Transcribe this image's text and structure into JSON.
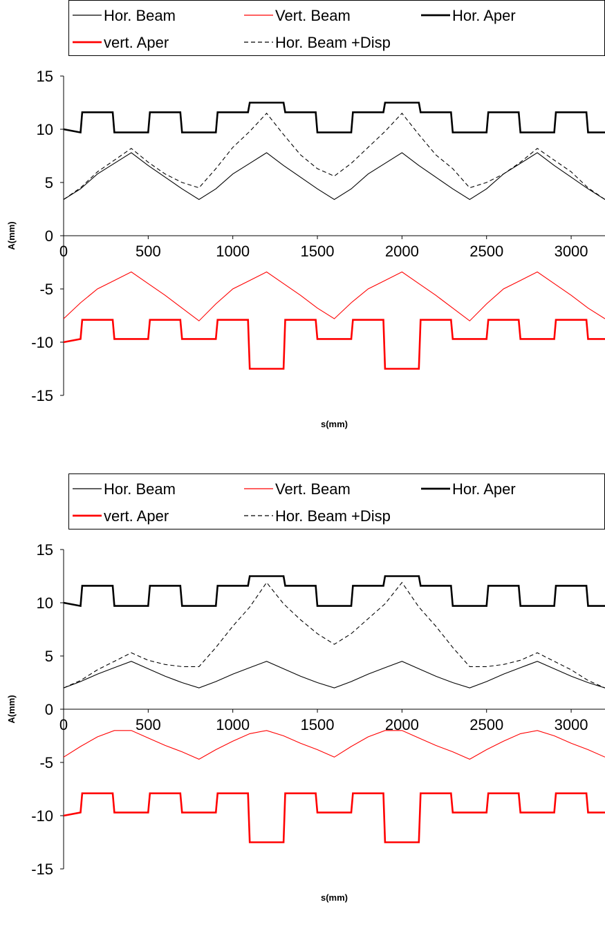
{
  "chart_data": [
    {
      "type": "line",
      "xlabel": "s(mm)",
      "ylabel": "A(mm)",
      "xlim": [
        0,
        3200
      ],
      "ylim": [
        -15,
        15
      ],
      "xticks": [
        "0",
        "500",
        "1000",
        "1500",
        "2000",
        "2500",
        "3000"
      ],
      "yticks": [
        "15",
        "10",
        "5",
        "0",
        "-5",
        "-10",
        "-15"
      ],
      "grid": "none",
      "legend_position": "top",
      "series": [
        {
          "name": "Hor. Beam",
          "color": "#000000",
          "width": 1,
          "dash": "none",
          "x": [
            0,
            100,
            200,
            300,
            400,
            500,
            600,
            700,
            800,
            900,
            1000,
            1100,
            1200,
            1300,
            1400,
            1500,
            1600,
            1700,
            1800,
            1900,
            2000,
            2100,
            2200,
            2300,
            2400,
            2500,
            2600,
            2700,
            2800,
            2900,
            3000,
            3100,
            3200
          ],
          "y": [
            3.4,
            4.4,
            5.8,
            6.8,
            7.8,
            6.6,
            5.5,
            4.4,
            3.4,
            4.4,
            5.8,
            6.8,
            7.8,
            6.6,
            5.5,
            4.4,
            3.4,
            4.4,
            5.8,
            6.8,
            7.8,
            6.6,
            5.5,
            4.4,
            3.4,
            4.4,
            5.8,
            6.8,
            7.8,
            6.6,
            5.5,
            4.4,
            3.4
          ]
        },
        {
          "name": "Vert. Beam",
          "color": "#ff0000",
          "width": 1,
          "dash": "none",
          "x": [
            0,
            100,
            200,
            300,
            400,
            500,
            600,
            700,
            800,
            900,
            1000,
            1100,
            1200,
            1300,
            1400,
            1500,
            1600,
            1700,
            1800,
            1900,
            2000,
            2100,
            2200,
            2300,
            2400,
            2500,
            2600,
            2700,
            2800,
            2900,
            3000,
            3100,
            3200
          ],
          "y": [
            -7.8,
            -6.3,
            -5.0,
            -4.2,
            -3.4,
            -4.5,
            -5.6,
            -6.8,
            -8.0,
            -6.4,
            -5.0,
            -4.2,
            -3.4,
            -4.5,
            -5.6,
            -6.8,
            -7.8,
            -6.3,
            -5.0,
            -4.2,
            -3.4,
            -4.5,
            -5.6,
            -6.8,
            -8.0,
            -6.4,
            -5.0,
            -4.2,
            -3.4,
            -4.5,
            -5.6,
            -6.8,
            -7.8
          ]
        },
        {
          "name": "Hor. Aper",
          "color": "#000000",
          "width": 2.5,
          "dash": "none",
          "x": [
            0,
            100,
            110,
            290,
            300,
            500,
            510,
            690,
            700,
            900,
            910,
            1090,
            1100,
            1300,
            1310,
            1490,
            1500,
            1700,
            1710,
            1890,
            1900,
            2100,
            2110,
            2290,
            2300,
            2500,
            2510,
            2690,
            2700,
            2900,
            2910,
            3090,
            3100,
            3200
          ],
          "y": [
            10.0,
            9.7,
            11.6,
            11.6,
            9.7,
            9.7,
            11.6,
            11.6,
            9.7,
            9.7,
            11.6,
            11.6,
            12.5,
            12.5,
            11.6,
            11.6,
            9.7,
            9.7,
            11.6,
            11.6,
            12.5,
            12.5,
            11.6,
            11.6,
            9.7,
            9.7,
            11.6,
            11.6,
            9.7,
            9.7,
            11.6,
            11.6,
            9.7,
            9.7
          ]
        },
        {
          "name": "vert. Aper",
          "color": "#ff0000",
          "width": 2.5,
          "dash": "none",
          "x": [
            0,
            100,
            110,
            290,
            300,
            500,
            510,
            690,
            700,
            900,
            910,
            1090,
            1100,
            1300,
            1310,
            1490,
            1500,
            1700,
            1710,
            1890,
            1900,
            2100,
            2110,
            2290,
            2300,
            2500,
            2510,
            2690,
            2700,
            2900,
            2910,
            3090,
            3100,
            3200
          ],
          "y": [
            -10.0,
            -9.7,
            -7.9,
            -7.9,
            -9.7,
            -9.7,
            -7.9,
            -7.9,
            -9.7,
            -9.7,
            -7.9,
            -7.9,
            -12.5,
            -12.5,
            -7.9,
            -7.9,
            -9.7,
            -9.7,
            -7.9,
            -7.9,
            -12.5,
            -12.5,
            -7.9,
            -7.9,
            -9.7,
            -9.7,
            -7.9,
            -7.9,
            -9.7,
            -9.7,
            -7.9,
            -7.9,
            -9.7,
            -9.7
          ]
        },
        {
          "name": "Hor. Beam +Disp",
          "color": "#000000",
          "width": 1,
          "dash": "6,4",
          "x": [
            0,
            100,
            200,
            300,
            400,
            500,
            600,
            700,
            800,
            900,
            1000,
            1100,
            1200,
            1300,
            1400,
            1500,
            1600,
            1700,
            1800,
            1900,
            2000,
            2100,
            2200,
            2300,
            2400,
            2500,
            2600,
            2700,
            2800,
            2900,
            3000,
            3100,
            3200
          ],
          "y": [
            3.4,
            4.5,
            6.0,
            7.1,
            8.2,
            6.9,
            5.8,
            5.0,
            4.5,
            6.3,
            8.3,
            9.8,
            11.5,
            9.5,
            7.6,
            6.3,
            5.6,
            6.8,
            8.3,
            9.8,
            11.5,
            9.5,
            7.6,
            6.3,
            4.5,
            5.0,
            5.8,
            6.9,
            8.2,
            7.1,
            6.0,
            4.5,
            3.4
          ]
        }
      ]
    },
    {
      "type": "line",
      "xlabel": "s(mm)",
      "ylabel": "A(mm)",
      "xlim": [
        0,
        3200
      ],
      "ylim": [
        -15,
        15
      ],
      "xticks": [
        "0",
        "500",
        "1000",
        "1500",
        "2000",
        "2500",
        "3000"
      ],
      "yticks": [
        "15",
        "10",
        "5",
        "0",
        "-5",
        "-10",
        "-15"
      ],
      "grid": "none",
      "legend_position": "top",
      "series": [
        {
          "name": "Hor. Beam",
          "color": "#000000",
          "width": 1,
          "dash": "none",
          "x": [
            0,
            100,
            200,
            300,
            400,
            500,
            600,
            700,
            800,
            900,
            1000,
            1100,
            1200,
            1300,
            1400,
            1500,
            1600,
            1700,
            1800,
            1900,
            2000,
            2100,
            2200,
            2300,
            2400,
            2500,
            2600,
            2700,
            2800,
            2900,
            3000,
            3100,
            3200
          ],
          "y": [
            2.0,
            2.6,
            3.3,
            3.9,
            4.5,
            3.8,
            3.1,
            2.5,
            2.0,
            2.6,
            3.3,
            3.9,
            4.5,
            3.8,
            3.1,
            2.5,
            2.0,
            2.6,
            3.3,
            3.9,
            4.5,
            3.8,
            3.1,
            2.5,
            2.0,
            2.6,
            3.3,
            3.9,
            4.5,
            3.8,
            3.1,
            2.5,
            2.0
          ]
        },
        {
          "name": "Vert. Beam",
          "color": "#ff0000",
          "width": 1,
          "dash": "none",
          "x": [
            0,
            100,
            200,
            300,
            400,
            500,
            600,
            700,
            800,
            900,
            1000,
            1100,
            1200,
            1300,
            1400,
            1500,
            1600,
            1700,
            1800,
            1900,
            2000,
            2100,
            2200,
            2300,
            2400,
            2500,
            2600,
            2700,
            2800,
            2900,
            3000,
            3100,
            3200
          ],
          "y": [
            -4.5,
            -3.5,
            -2.6,
            -2.0,
            -2.0,
            -2.7,
            -3.4,
            -4.0,
            -4.7,
            -3.8,
            -3.0,
            -2.3,
            -2.0,
            -2.5,
            -3.2,
            -3.8,
            -4.5,
            -3.5,
            -2.6,
            -2.0,
            -2.0,
            -2.7,
            -3.4,
            -4.0,
            -4.7,
            -3.8,
            -3.0,
            -2.3,
            -2.0,
            -2.5,
            -3.2,
            -3.8,
            -4.5
          ]
        },
        {
          "name": "Hor. Aper",
          "color": "#000000",
          "width": 2.5,
          "dash": "none",
          "x": [
            0,
            100,
            110,
            290,
            300,
            500,
            510,
            690,
            700,
            900,
            910,
            1090,
            1100,
            1300,
            1310,
            1490,
            1500,
            1700,
            1710,
            1890,
            1900,
            2100,
            2110,
            2290,
            2300,
            2500,
            2510,
            2690,
            2700,
            2900,
            2910,
            3090,
            3100,
            3200
          ],
          "y": [
            10.0,
            9.7,
            11.6,
            11.6,
            9.7,
            9.7,
            11.6,
            11.6,
            9.7,
            9.7,
            11.6,
            11.6,
            12.5,
            12.5,
            11.6,
            11.6,
            9.7,
            9.7,
            11.6,
            11.6,
            12.5,
            12.5,
            11.6,
            11.6,
            9.7,
            9.7,
            11.6,
            11.6,
            9.7,
            9.7,
            11.6,
            11.6,
            9.7,
            9.7
          ]
        },
        {
          "name": "vert. Aper",
          "color": "#ff0000",
          "width": 2.5,
          "dash": "none",
          "x": [
            0,
            100,
            110,
            290,
            300,
            500,
            510,
            690,
            700,
            900,
            910,
            1090,
            1100,
            1300,
            1310,
            1490,
            1500,
            1700,
            1710,
            1890,
            1900,
            2100,
            2110,
            2290,
            2300,
            2500,
            2510,
            2690,
            2700,
            2900,
            2910,
            3090,
            3100,
            3200
          ],
          "y": [
            -10.0,
            -9.7,
            -7.9,
            -7.9,
            -9.7,
            -9.7,
            -7.9,
            -7.9,
            -9.7,
            -9.7,
            -7.9,
            -7.9,
            -12.5,
            -12.5,
            -7.9,
            -7.9,
            -9.7,
            -9.7,
            -7.9,
            -7.9,
            -12.5,
            -12.5,
            -7.9,
            -7.9,
            -9.7,
            -9.7,
            -7.9,
            -7.9,
            -9.7,
            -9.7,
            -7.9,
            -7.9,
            -9.7,
            -9.7
          ]
        },
        {
          "name": "Hor. Beam +Disp",
          "color": "#000000",
          "width": 1,
          "dash": "6,4",
          "x": [
            0,
            100,
            200,
            300,
            400,
            500,
            600,
            700,
            800,
            900,
            1000,
            1100,
            1200,
            1300,
            1400,
            1500,
            1600,
            1700,
            1800,
            1900,
            2000,
            2100,
            2200,
            2300,
            2400,
            2500,
            2600,
            2700,
            2800,
            2900,
            3000,
            3100,
            3200
          ],
          "y": [
            2.0,
            2.7,
            3.7,
            4.5,
            5.3,
            4.6,
            4.2,
            4.0,
            4.0,
            5.8,
            7.8,
            9.6,
            11.9,
            9.9,
            8.4,
            7.1,
            6.1,
            7.1,
            8.5,
            9.9,
            11.9,
            9.6,
            7.8,
            5.8,
            4.0,
            4.0,
            4.2,
            4.6,
            5.3,
            4.5,
            3.7,
            2.7,
            2.0
          ]
        }
      ]
    }
  ]
}
